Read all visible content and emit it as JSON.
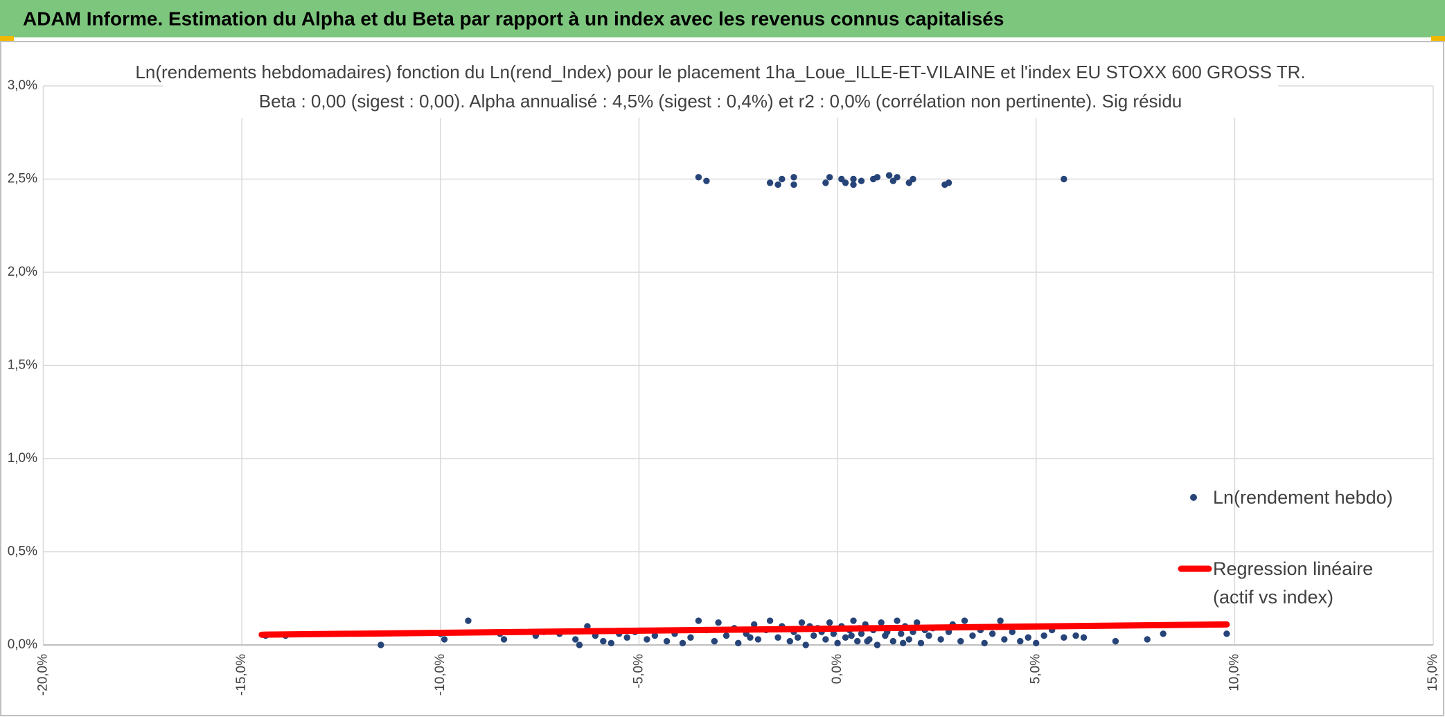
{
  "header": {
    "title": "ADAM Informe. Estimation du Alpha et du Beta par rapport à un index avec les revenus connus capitalisés"
  },
  "chart_data": {
    "type": "scatter",
    "title": "Ln(rendements hebdomadaires) fonction du Ln(rend_Index) pour le placement 1ha_Loue_ILLE-ET-VILAINE et l'index EU STOXX 600 GROSS TR.",
    "subtitle": "Beta : 0,00 (sigest : 0,00). Alpha annualisé : 4,5% (sigest : 0,4%) et r2 : 0,0% (corrélation non pertinente). Sig résidu",
    "xlim": [
      -20,
      15
    ],
    "ylim": [
      0,
      3
    ],
    "xticks": [
      {
        "value": -20,
        "label": "-20,0%"
      },
      {
        "value": -15,
        "label": "-15,0%"
      },
      {
        "value": -10,
        "label": "-10,0%"
      },
      {
        "value": -5,
        "label": "-5,0%"
      },
      {
        "value": 0,
        "label": "0,0%"
      },
      {
        "value": 5,
        "label": "5,0%"
      },
      {
        "value": 10,
        "label": "10,0%"
      },
      {
        "value": 15,
        "label": "15,0%"
      }
    ],
    "yticks": [
      {
        "value": 0,
        "label": "0,0%"
      },
      {
        "value": 0.5,
        "label": "0,5%"
      },
      {
        "value": 1,
        "label": "1,0%"
      },
      {
        "value": 1.5,
        "label": "1,5%"
      },
      {
        "value": 2,
        "label": "2,0%"
      },
      {
        "value": 2.5,
        "label": "2,5%"
      },
      {
        "value": 3,
        "label": "3,0%"
      }
    ],
    "grid": true,
    "legend": "right",
    "series": [
      {
        "name": "Ln(rendement hebdo)",
        "color": "#264478",
        "mode": "markers",
        "x": [
          -3.5,
          -3.3,
          -1.7,
          -1.5,
          -1.4,
          -1.1,
          -1.1,
          -0.3,
          -0.2,
          0.1,
          0.2,
          0.4,
          0.4,
          0.6,
          0.9,
          1.0,
          1.3,
          1.4,
          1.5,
          1.8,
          1.9,
          2.7,
          2.8,
          5.7,
          -14.4,
          -13.9,
          -11.5,
          -10,
          -9.9,
          -9.3,
          -8.5,
          -8.4,
          -7.6,
          -7.4,
          -7.0,
          -6.6,
          -6.5,
          -6.3,
          -6.1,
          -5.9,
          -5.7,
          -5.5,
          -5.3,
          -5.1,
          -4.8,
          -4.6,
          -4.3,
          -4.1,
          -3.9,
          -3.7,
          -3.5,
          -3.3,
          -3.1,
          -3.0,
          -2.8,
          -2.6,
          -2.5,
          -2.3,
          -2.1,
          -2.0,
          -1.8,
          -1.7,
          -1.5,
          -1.4,
          -1.2,
          -1.1,
          -0.9,
          -0.8,
          -0.6,
          -0.5,
          -0.3,
          -0.2,
          -0.1,
          0.0,
          0.1,
          0.2,
          0.3,
          0.4,
          0.5,
          0.6,
          0.7,
          0.8,
          0.9,
          1.0,
          1.1,
          1.2,
          1.3,
          1.4,
          1.5,
          1.6,
          1.7,
          1.8,
          1.9,
          2.0,
          2.1,
          2.3,
          2.4,
          2.6,
          2.8,
          2.9,
          3.1,
          3.2,
          3.4,
          3.6,
          3.7,
          3.9,
          4.1,
          4.2,
          4.4,
          4.6,
          4.8,
          5.0,
          5.2,
          5.4,
          5.7,
          6.0,
          6.2,
          7.0,
          7.8,
          8.2,
          9.8,
          -1.0,
          -0.4,
          0.35,
          0.75,
          1.25,
          1.65,
          -2.2,
          2.2,
          -0.7,
          0.55
        ],
        "values": [
          2.51,
          2.49,
          2.48,
          2.47,
          2.5,
          2.47,
          2.51,
          2.48,
          2.51,
          2.5,
          2.48,
          2.47,
          2.5,
          2.49,
          2.5,
          2.51,
          2.52,
          2.49,
          2.51,
          2.48,
          2.5,
          2.47,
          2.48,
          2.5,
          0.05,
          0.05,
          0.0,
          0.06,
          0.03,
          0.13,
          0.06,
          0.03,
          0.05,
          0.07,
          0.06,
          0.03,
          0.0,
          0.1,
          0.05,
          0.02,
          0.01,
          0.06,
          0.04,
          0.07,
          0.03,
          0.05,
          0.02,
          0.06,
          0.01,
          0.04,
          0.13,
          0.08,
          0.02,
          0.12,
          0.05,
          0.09,
          0.01,
          0.06,
          0.11,
          0.03,
          0.08,
          0.13,
          0.04,
          0.1,
          0.02,
          0.07,
          0.12,
          0.0,
          0.05,
          0.09,
          0.03,
          0.12,
          0.06,
          0.01,
          0.1,
          0.04,
          0.08,
          0.13,
          0.02,
          0.06,
          0.11,
          0.03,
          0.08,
          0.0,
          0.12,
          0.05,
          0.09,
          0.02,
          0.13,
          0.06,
          0.1,
          0.03,
          0.07,
          0.12,
          0.01,
          0.05,
          0.09,
          0.03,
          0.07,
          0.11,
          0.02,
          0.13,
          0.05,
          0.08,
          0.01,
          0.06,
          0.13,
          0.03,
          0.07,
          0.02,
          0.04,
          0.01,
          0.05,
          0.08,
          0.04,
          0.05,
          0.04,
          0.02,
          0.03,
          0.06,
          0.06,
          0.04,
          0.07,
          0.05,
          0.02,
          0.07,
          0.01,
          0.04,
          0.08,
          0.1,
          0.09
        ]
      },
      {
        "name": "Regression linéaire (actif vs index)",
        "color": "#ff0000",
        "mode": "line",
        "x": [
          -14.5,
          9.8
        ],
        "values": [
          0.055,
          0.11
        ]
      }
    ]
  }
}
